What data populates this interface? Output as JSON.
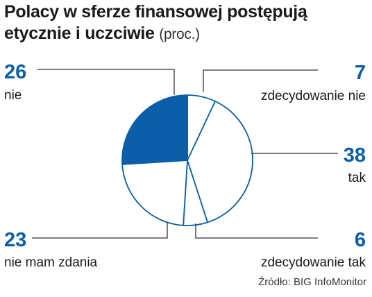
{
  "title_line1": "Polacy w sferze finansowej postępują",
  "title_line2": "etycznie i uczciwie",
  "unit": "(proc.)",
  "source": "Źródło: BIG InfoMonitor",
  "colors": {
    "highlight": "#0a5fa8",
    "outline": "#0a5fa8",
    "leader": "#333333",
    "text": "#1a1a1a"
  },
  "chart_data": {
    "type": "pie",
    "title": "Polacy w sferze finansowej postępują etycznie i uczciwie (proc.)",
    "slices": [
      {
        "label": "zdecydowanie nie",
        "value": 7
      },
      {
        "label": "tak",
        "value": 38
      },
      {
        "label": "zdecydowanie tak",
        "value": 6
      },
      {
        "label": "nie mam  zdania",
        "value": 23
      },
      {
        "label": "nie",
        "value": 26,
        "highlighted": true
      }
    ]
  }
}
